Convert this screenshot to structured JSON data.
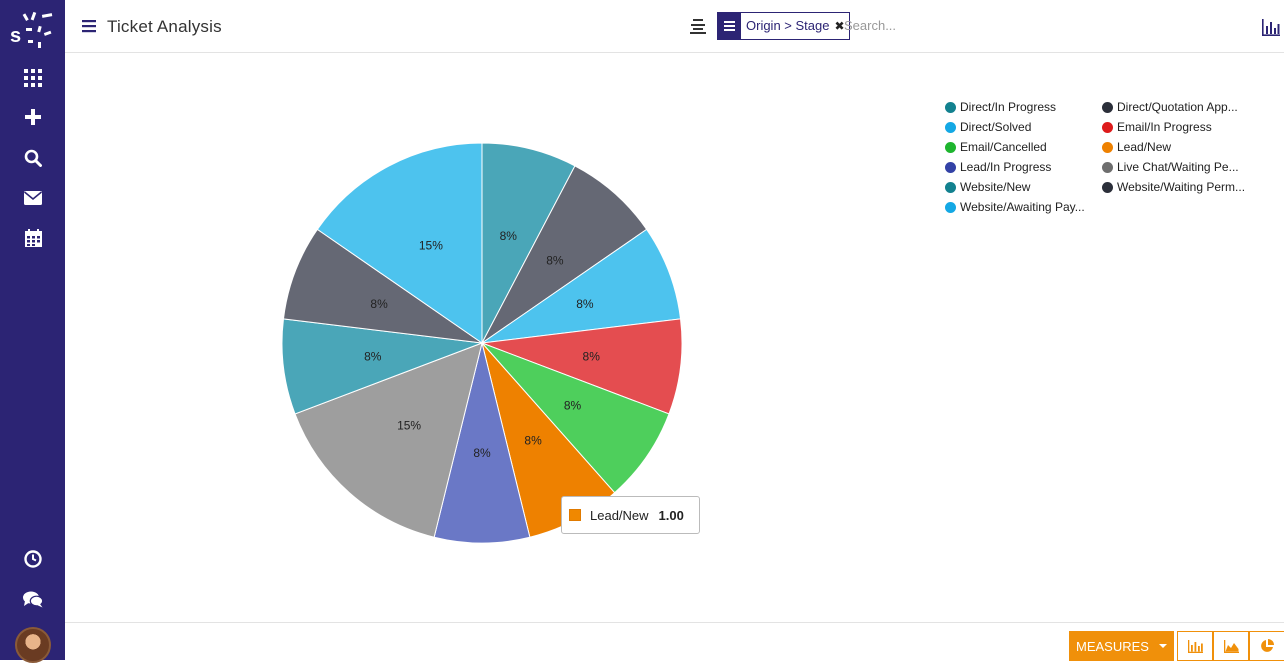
{
  "header": {
    "title": "Ticket Analysis",
    "facet_label": "Origin > Stage",
    "facet_close": "✖",
    "search_placeholder": "Search..."
  },
  "sidebar": {
    "icons": [
      "apps-icon",
      "plus-icon",
      "search-icon",
      "mail-icon",
      "calendar-icon",
      "clock-icon",
      "chat-icon"
    ]
  },
  "colors": {
    "sidebar": "#2c2474",
    "accent": "#f0900a"
  },
  "chart_data": {
    "type": "pie",
    "series": [
      {
        "name": "Direct/In Progress",
        "value": 1,
        "label": "8%",
        "color": "#4aa6b8",
        "legend_color": "#12818f"
      },
      {
        "name": "Direct/Quotation App...",
        "value": 1,
        "label": "8%",
        "color": "#656874",
        "legend_color": "#2b2f3a"
      },
      {
        "name": "Direct/Solved",
        "value": 1,
        "label": "8%",
        "color": "#4dc3ee",
        "legend_color": "#14a8e4"
      },
      {
        "name": "Email/In Progress",
        "value": 1,
        "label": "8%",
        "color": "#e44d50",
        "legend_color": "#dd1b1b"
      },
      {
        "name": "Email/Cancelled",
        "value": 1,
        "label": "8%",
        "color": "#4ecf5c",
        "legend_color": "#1eb52e"
      },
      {
        "name": "Lead/New",
        "value": 1,
        "label": "8%",
        "color": "#ee8100",
        "legend_color": "#ee8100"
      },
      {
        "name": "Lead/In Progress",
        "value": 1,
        "label": "8%",
        "color": "#6a78c6",
        "legend_color": "#3342a6"
      },
      {
        "name": "Live Chat/Waiting Pe...",
        "value": 2,
        "label": "15%",
        "color": "#9e9e9e",
        "legend_color": "#6e6e6e"
      },
      {
        "name": "Website/New",
        "value": 1,
        "label": "8%",
        "color": "#4aa6b8",
        "legend_color": "#12818f"
      },
      {
        "name": "Website/Waiting Perm...",
        "value": 1,
        "label": "8%",
        "color": "#656874",
        "legend_color": "#2b2f3a"
      },
      {
        "name": "Website/Awaiting Pay...",
        "value": 2,
        "label": "15%",
        "color": "#4dc3ee",
        "legend_color": "#14a8e4"
      }
    ],
    "legend_placement": "top-right",
    "tooltip": {
      "label": "Lead/New",
      "value": "1.00"
    }
  },
  "footer": {
    "measures_label": "MEASURES",
    "chart_buttons": [
      "bar-chart-icon",
      "line-chart-icon",
      "pie-chart-icon"
    ]
  }
}
